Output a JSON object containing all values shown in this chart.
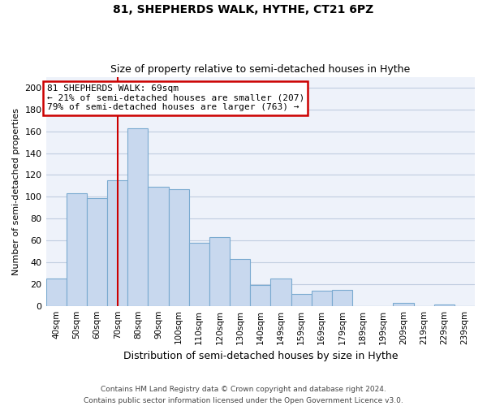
{
  "title": "81, SHEPHERDS WALK, HYTHE, CT21 6PZ",
  "subtitle": "Size of property relative to semi-detached houses in Hythe",
  "xlabel": "Distribution of semi-detached houses by size in Hythe",
  "ylabel": "Number of semi-detached properties",
  "categories": [
    "40sqm",
    "50sqm",
    "60sqm",
    "70sqm",
    "80sqm",
    "90sqm",
    "100sqm",
    "110sqm",
    "120sqm",
    "130sqm",
    "140sqm",
    "149sqm",
    "159sqm",
    "169sqm",
    "179sqm",
    "189sqm",
    "199sqm",
    "209sqm",
    "219sqm",
    "229sqm",
    "239sqm"
  ],
  "values": [
    25,
    103,
    99,
    115,
    163,
    109,
    107,
    58,
    63,
    43,
    19,
    25,
    11,
    14,
    15,
    0,
    0,
    3,
    0,
    1,
    0
  ],
  "bar_color": "#c8d8ee",
  "bar_edge_color": "#7aaad0",
  "grid_color": "#c0cde0",
  "bg_color": "#eef2fa",
  "annotation_box_color": "#ffffff",
  "annotation_box_edge": "#cc0000",
  "property_line_color": "#cc0000",
  "property_line_x": 3,
  "annotation_title": "81 SHEPHERDS WALK: 69sqm",
  "annotation_line1": "← 21% of semi-detached houses are smaller (207)",
  "annotation_line2": "79% of semi-detached houses are larger (763) →",
  "ylim": [
    0,
    210
  ],
  "yticks": [
    0,
    20,
    40,
    60,
    80,
    100,
    120,
    140,
    160,
    180,
    200
  ],
  "footnote1": "Contains HM Land Registry data © Crown copyright and database right 2024.",
  "footnote2": "Contains public sector information licensed under the Open Government Licence v3.0."
}
